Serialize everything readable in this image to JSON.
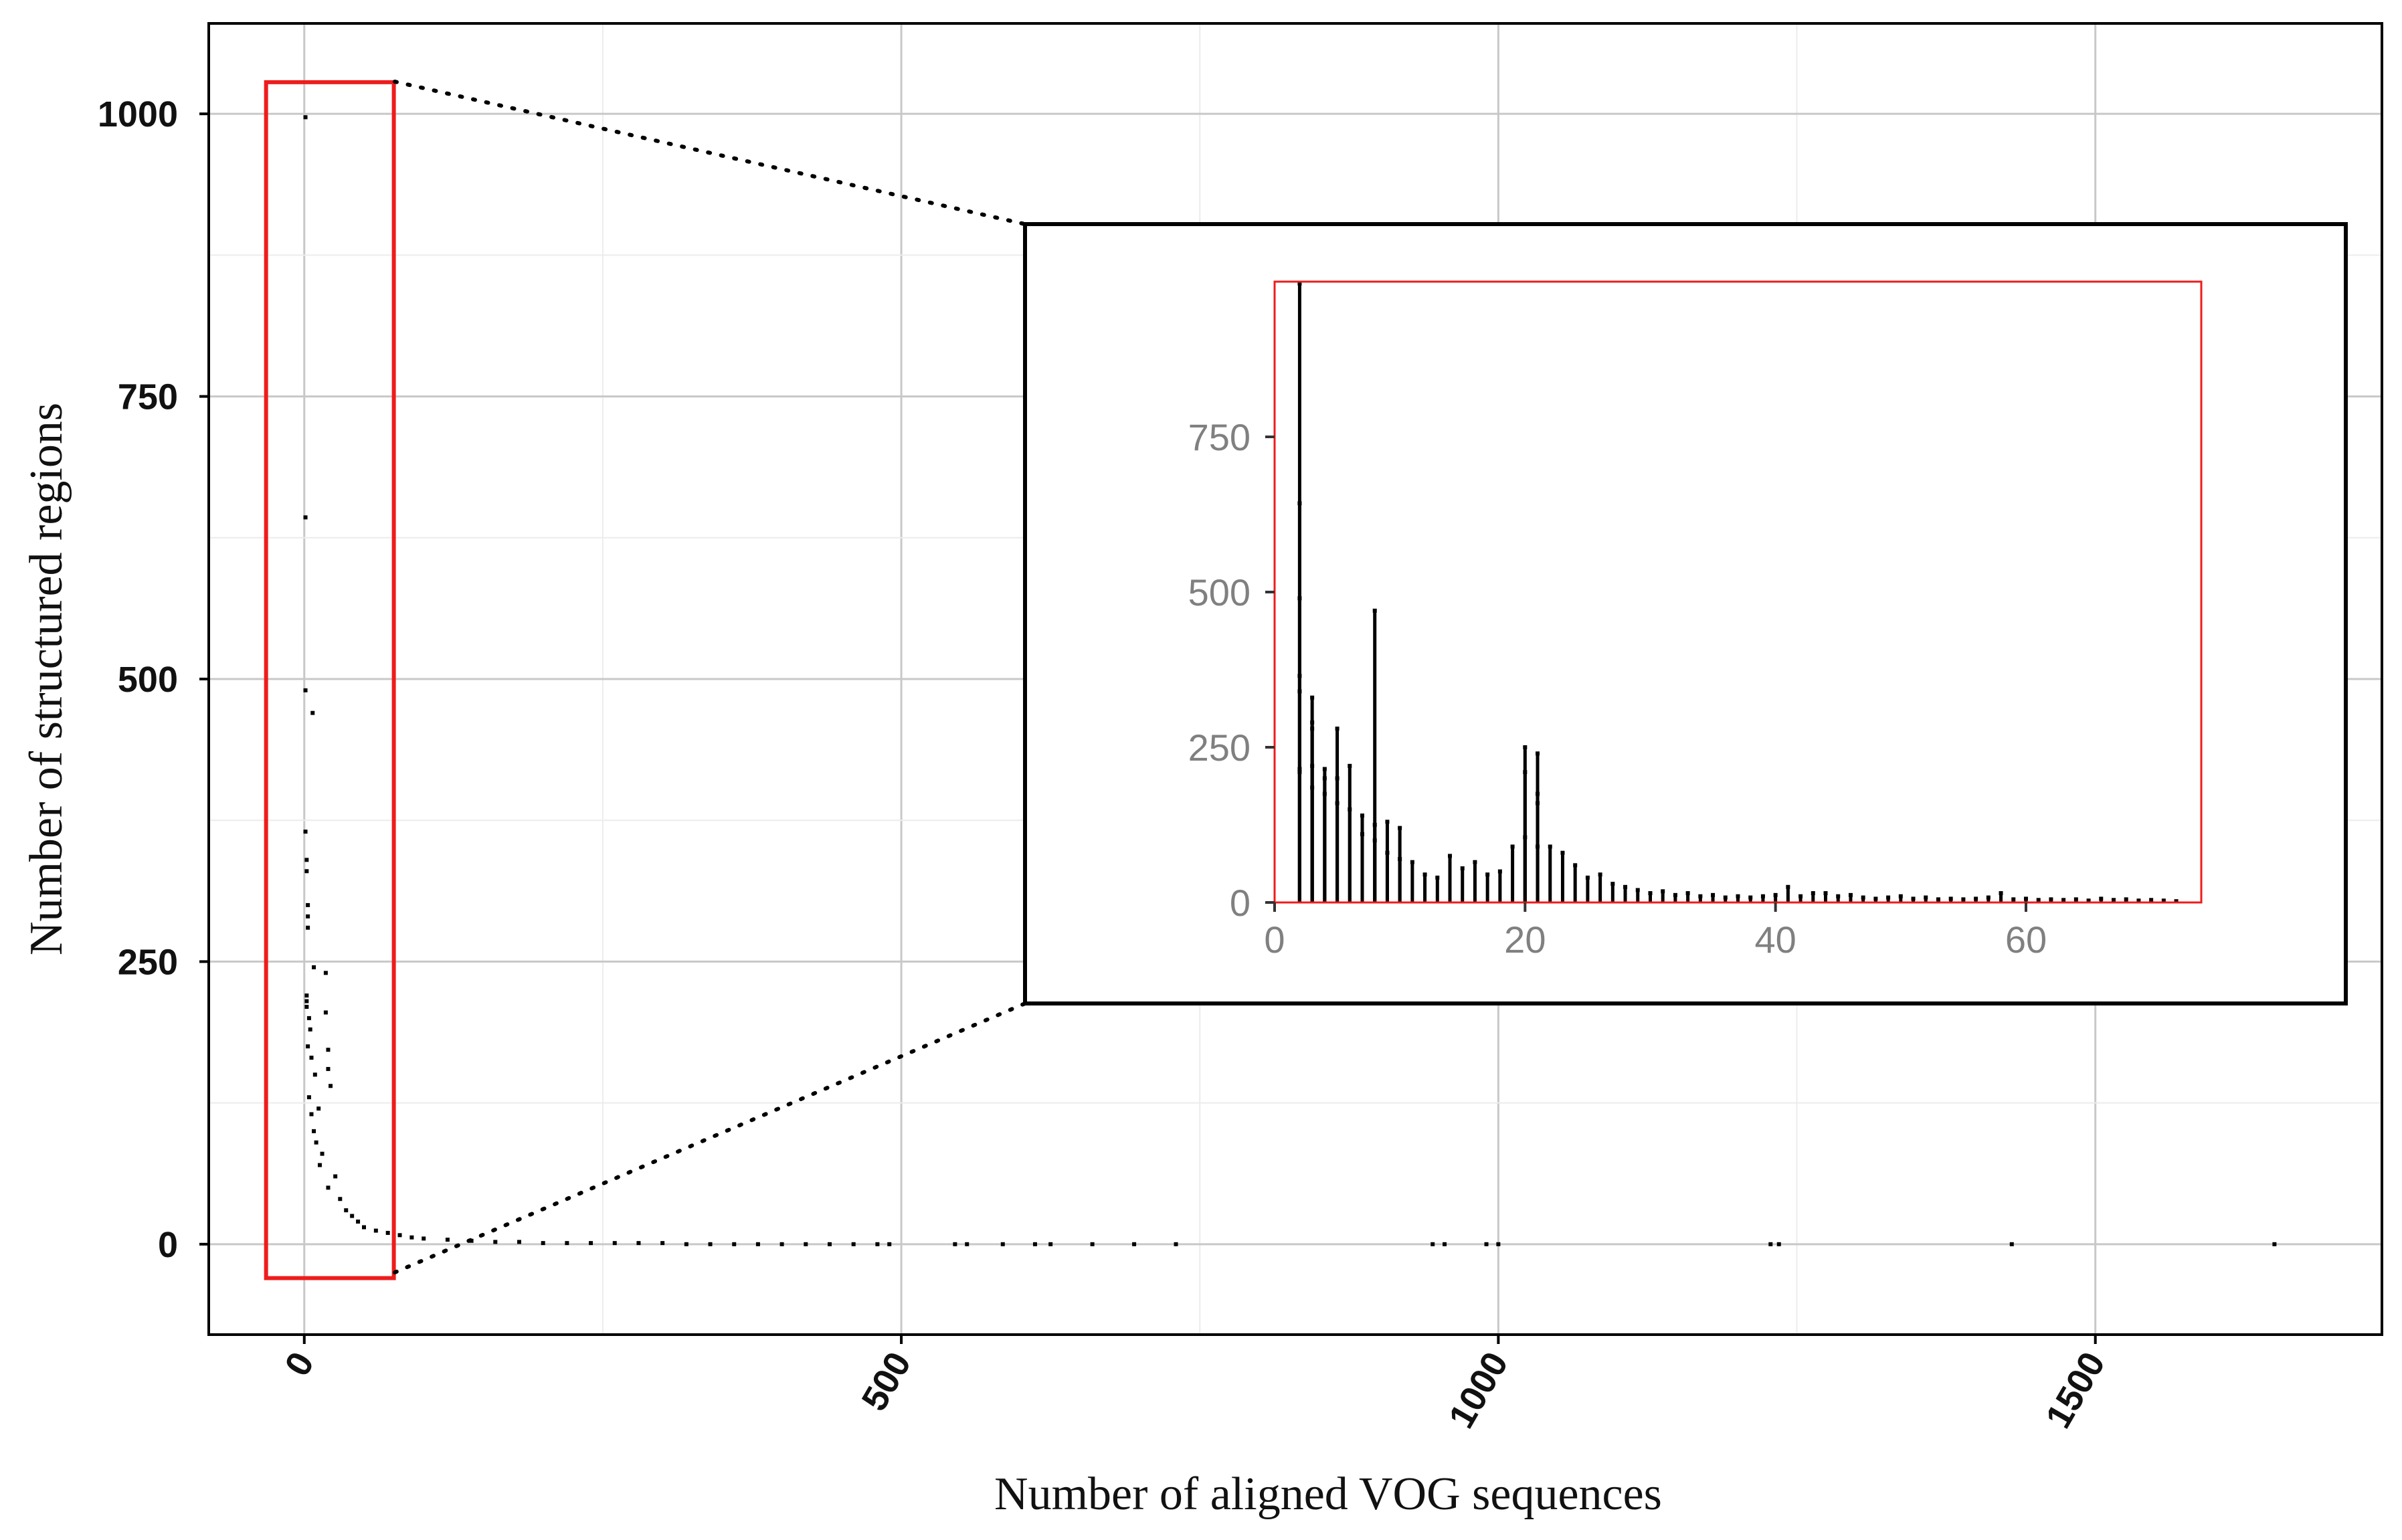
{
  "chart_data": [
    {
      "type": "scatter",
      "title": "",
      "xlabel": "Number of aligned VOG sequences",
      "ylabel": "Number of structured regions",
      "xlim": [
        -80,
        1740
      ],
      "ylim": [
        -80,
        1080
      ],
      "xticks": [
        0,
        500,
        1000,
        1500
      ],
      "xtick_labels": [
        "0",
        "500",
        "1000",
        "1500"
      ],
      "yticks": [
        0,
        250,
        500,
        750,
        1000
      ],
      "ytick_labels": [
        "0",
        "250",
        "500",
        "750",
        "1000"
      ],
      "grid": true,
      "zoom_box": {
        "x_range": [
          -32,
          75
        ],
        "y_range": [
          -30,
          1028
        ]
      },
      "points": [
        [
          1,
          997
        ],
        [
          1,
          643
        ],
        [
          1,
          490
        ],
        [
          7,
          470
        ],
        [
          1,
          365
        ],
        [
          2,
          340
        ],
        [
          2,
          330
        ],
        [
          3,
          300
        ],
        [
          3,
          290
        ],
        [
          3,
          280
        ],
        [
          8,
          245
        ],
        [
          18,
          240
        ],
        [
          18,
          205
        ],
        [
          2,
          220
        ],
        [
          2,
          215
        ],
        [
          2,
          210
        ],
        [
          4,
          200
        ],
        [
          5,
          190
        ],
        [
          20,
          172
        ],
        [
          20,
          155
        ],
        [
          22,
          140
        ],
        [
          3,
          175
        ],
        [
          6,
          165
        ],
        [
          9,
          150
        ],
        [
          4,
          130
        ],
        [
          12,
          120
        ],
        [
          6,
          115
        ],
        [
          8,
          100
        ],
        [
          10,
          90
        ],
        [
          15,
          80
        ],
        [
          13,
          70
        ],
        [
          26,
          60
        ],
        [
          20,
          50
        ],
        [
          30,
          40
        ],
        [
          35,
          30
        ],
        [
          40,
          25
        ],
        [
          45,
          20
        ],
        [
          50,
          15
        ],
        [
          60,
          12
        ],
        [
          70,
          10
        ],
        [
          80,
          8
        ],
        [
          90,
          6
        ],
        [
          100,
          5
        ],
        [
          120,
          4
        ],
        [
          140,
          3
        ],
        [
          160,
          2
        ],
        [
          180,
          2
        ],
        [
          200,
          1
        ],
        [
          220,
          1
        ],
        [
          240,
          1
        ],
        [
          260,
          1
        ],
        [
          280,
          1
        ],
        [
          300,
          1
        ],
        [
          320,
          0
        ],
        [
          340,
          0
        ],
        [
          360,
          0
        ],
        [
          380,
          0
        ],
        [
          400,
          0
        ],
        [
          420,
          0
        ],
        [
          440,
          0
        ],
        [
          460,
          0
        ],
        [
          480,
          0
        ],
        [
          490,
          0
        ],
        [
          545,
          0
        ],
        [
          555,
          0
        ],
        [
          585,
          0
        ],
        [
          612,
          0
        ],
        [
          625,
          0
        ],
        [
          660,
          0
        ],
        [
          695,
          0
        ],
        [
          730,
          0
        ],
        [
          945,
          0
        ],
        [
          955,
          0
        ],
        [
          990,
          0
        ],
        [
          1000,
          0
        ],
        [
          1228,
          0
        ],
        [
          1235,
          0
        ],
        [
          1430,
          0
        ],
        [
          1650,
          0
        ]
      ]
    },
    {
      "type": "scatter",
      "title": "",
      "xlabel": "",
      "ylabel": "",
      "xlim": [
        0,
        74
      ],
      "ylim": [
        0,
        1000
      ],
      "xticks": [
        0,
        20,
        40,
        60
      ],
      "xtick_labels": [
        "0",
        "20",
        "40",
        "60"
      ],
      "yticks": [
        0,
        250,
        500,
        750
      ],
      "ytick_labels": [
        "0",
        "250",
        "500",
        "750"
      ],
      "grid": false,
      "frame_color": "#ff0000",
      "points": [
        [
          2,
          997
        ],
        [
          2,
          643
        ],
        [
          2,
          490
        ],
        [
          8,
          470
        ],
        [
          2,
          365
        ],
        [
          2,
          340
        ],
        [
          3,
          330
        ],
        [
          3,
          290
        ],
        [
          3,
          280
        ],
        [
          5,
          280
        ],
        [
          20,
          250
        ],
        [
          21,
          240
        ],
        [
          20,
          210
        ],
        [
          21,
          175
        ],
        [
          21,
          160
        ],
        [
          6,
          220
        ],
        [
          3,
          220
        ],
        [
          4,
          215
        ],
        [
          4,
          200
        ],
        [
          5,
          200
        ],
        [
          2,
          215
        ],
        [
          2,
          210
        ],
        [
          3,
          185
        ],
        [
          4,
          175
        ],
        [
          5,
          160
        ],
        [
          6,
          150
        ],
        [
          7,
          140
        ],
        [
          8,
          125
        ],
        [
          9,
          130
        ],
        [
          10,
          120
        ],
        [
          7,
          110
        ],
        [
          8,
          100
        ],
        [
          9,
          80
        ],
        [
          10,
          70
        ],
        [
          11,
          65
        ],
        [
          12,
          45
        ],
        [
          13,
          40
        ],
        [
          14,
          75
        ],
        [
          15,
          55
        ],
        [
          16,
          65
        ],
        [
          17,
          45
        ],
        [
          18,
          50
        ],
        [
          19,
          90
        ],
        [
          20,
          105
        ],
        [
          21,
          90
        ],
        [
          22,
          90
        ],
        [
          23,
          80
        ],
        [
          24,
          60
        ],
        [
          25,
          40
        ],
        [
          26,
          45
        ],
        [
          27,
          30
        ],
        [
          28,
          25
        ],
        [
          29,
          20
        ],
        [
          30,
          15
        ],
        [
          31,
          18
        ],
        [
          32,
          12
        ],
        [
          33,
          15
        ],
        [
          34,
          10
        ],
        [
          35,
          12
        ],
        [
          36,
          8
        ],
        [
          37,
          10
        ],
        [
          38,
          8
        ],
        [
          39,
          10
        ],
        [
          40,
          12
        ],
        [
          41,
          25
        ],
        [
          42,
          10
        ],
        [
          43,
          15
        ],
        [
          44,
          15
        ],
        [
          45,
          10
        ],
        [
          46,
          12
        ],
        [
          47,
          8
        ],
        [
          48,
          6
        ],
        [
          49,
          8
        ],
        [
          50,
          10
        ],
        [
          51,
          6
        ],
        [
          52,
          8
        ],
        [
          53,
          5
        ],
        [
          54,
          6
        ],
        [
          55,
          5
        ],
        [
          56,
          6
        ],
        [
          57,
          8
        ],
        [
          58,
          15
        ],
        [
          59,
          5
        ],
        [
          60,
          6
        ],
        [
          61,
          4
        ],
        [
          62,
          5
        ],
        [
          63,
          4
        ],
        [
          64,
          5
        ],
        [
          65,
          3
        ],
        [
          66,
          6
        ],
        [
          67,
          4
        ],
        [
          68,
          5
        ],
        [
          69,
          3
        ],
        [
          70,
          4
        ],
        [
          71,
          3
        ],
        [
          72,
          2
        ]
      ]
    }
  ]
}
